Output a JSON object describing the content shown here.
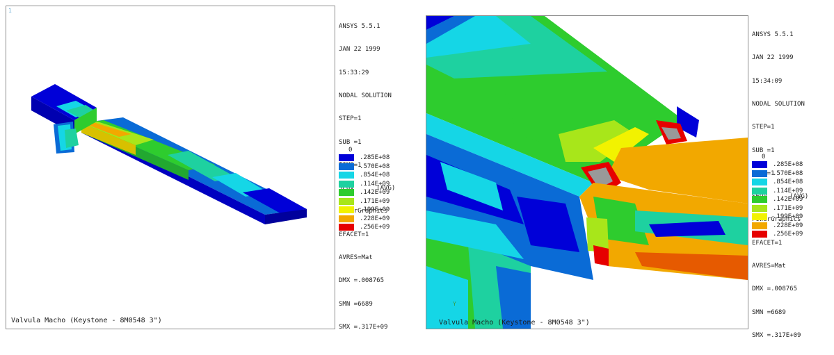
{
  "colors": {
    "band1": "#0000d8",
    "band2": "#0a6bd6",
    "band3": "#15d6e6",
    "band4": "#1ed1a0",
    "band5": "#2ecc2e",
    "band6": "#a8e61a",
    "band7": "#f2f200",
    "band8": "#f2a800",
    "band9": "#e60000"
  },
  "left_panel": {
    "window_number": "1",
    "caption": "Valvula Macho (Keystone - 8M0548 3\")",
    "info_lines": [
      "ANSYS 5.5.1",
      "JAN 22 1999",
      "15:33:29",
      "NODAL SOLUTION",
      "STEP=1",
      "SUB =1",
      "TIME=1",
      "SEQV      (AVG)",
      "PowerGraphics",
      "EFACET=1",
      "AVRES=Mat",
      "DMX =.008765",
      "SMN =6689",
      "SMX =.317E+09"
    ],
    "legend_zero": "0",
    "legend_values": [
      ".285E+08",
      ".570E+08",
      ".854E+08",
      ".114E+09",
      ".142E+09",
      ".171E+09",
      ".199E+09",
      ".228E+09",
      ".256E+09"
    ]
  },
  "right_panel": {
    "caption": "Valvula Macho (Keystone - 8M0548 3\")",
    "axis_label": "Y",
    "info_lines": [
      "ANSYS 5.5.1",
      "JAN 22 1999",
      "15:34:09",
      "NODAL SOLUTION",
      "STEP=1",
      "SUB =1",
      "TIME=1",
      "SEQV      (AVG)",
      "PowerGraphics",
      "EFACET=1",
      "AVRES=Mat",
      "DMX =.008765",
      "SMN =6689",
      "SMX =.317E+09"
    ],
    "legend_zero": "0",
    "legend_values": [
      ".285E+08",
      ".570E+08",
      ".854E+08",
      ".114E+09",
      ".142E+09",
      ".171E+09",
      ".199E+09",
      ".228E+09",
      ".256E+09"
    ]
  }
}
